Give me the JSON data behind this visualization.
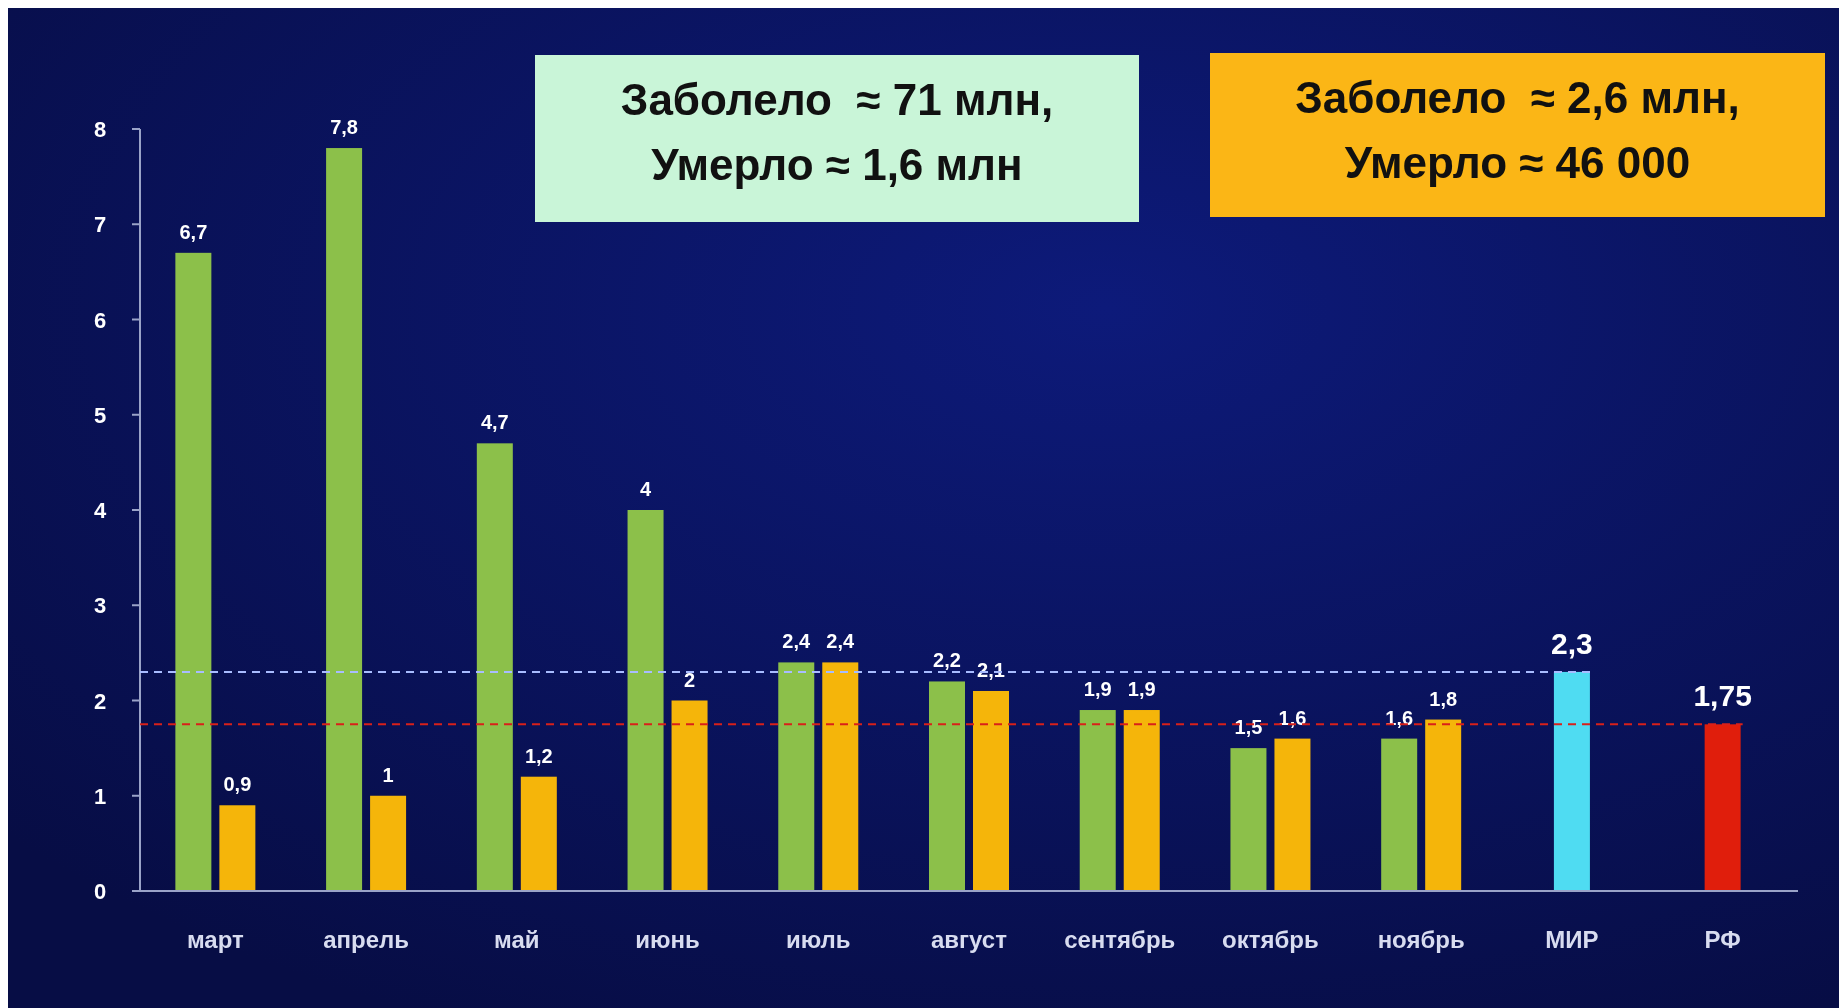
{
  "chart_data": {
    "type": "bar",
    "categories": [
      "март",
      "апрель",
      "май",
      "июнь",
      "июль",
      "август",
      "сентябрь",
      "октябрь",
      "ноябрь",
      "МИР",
      "РФ"
    ],
    "series": [
      {
        "color": "#8cc04a",
        "values": [
          6.7,
          7.8,
          4.7,
          4,
          2.4,
          2.2,
          1.9,
          1.5,
          1.6,
          null,
          null
        ],
        "value_labels": [
          "6,7",
          "7,8",
          "4,7",
          "4",
          "2,4",
          "2,2",
          "1,9",
          "1,5",
          "1,6",
          null,
          null
        ]
      },
      {
        "color": "#f5b50a",
        "values": [
          0.9,
          1,
          1.2,
          2,
          2.4,
          2.1,
          1.9,
          1.6,
          1.8,
          null,
          null
        ],
        "value_labels": [
          "0,9",
          "1",
          "1,2",
          "2",
          "2,4",
          "2,1",
          "1,9",
          "1,6",
          "1,8",
          null,
          null
        ]
      },
      {
        "colors": [
          null,
          null,
          null,
          null,
          null,
          null,
          null,
          null,
          null,
          "#4fdcf2",
          "#e01e0c"
        ],
        "values": [
          null,
          null,
          null,
          null,
          null,
          null,
          null,
          null,
          null,
          2.3,
          1.75
        ],
        "value_labels": [
          null,
          null,
          null,
          null,
          null,
          null,
          null,
          null,
          null,
          "2,3",
          "1,75"
        ]
      }
    ],
    "ylim": [
      0,
      8
    ],
    "yticks": [
      0,
      1,
      2,
      3,
      4,
      5,
      6,
      7,
      8
    ],
    "ref_lines": [
      {
        "axis": "y",
        "value": 2.3,
        "color": "#a8bcff",
        "line_style": "dashed"
      },
      {
        "axis": "y",
        "value": 1.75,
        "color": "#d9201a",
        "line_style": "dashed"
      }
    ],
    "annotations": [
      "Заболело  ≈ 71 млн,\nУмерло ≈ 1,6 млн",
      "Заболело  ≈ 2,6 млн,\nУмерло ≈ 46 000"
    ]
  }
}
